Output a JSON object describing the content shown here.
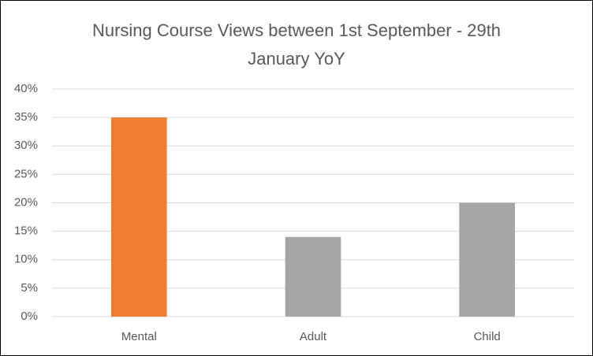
{
  "chart_data": {
    "type": "bar",
    "title": "Nursing Course Views between 1st September - 29th January YoY",
    "categories": [
      "Mental",
      "Adult",
      "Child"
    ],
    "values": [
      35,
      14,
      20
    ],
    "colors": [
      "#ed7d31",
      "#a5a5a5",
      "#a5a5a5"
    ],
    "ylim": [
      0,
      40
    ],
    "yticks": [
      {
        "value": 0,
        "label": "0%"
      },
      {
        "value": 5,
        "label": "5%"
      },
      {
        "value": 10,
        "label": "10%"
      },
      {
        "value": 15,
        "label": "15%"
      },
      {
        "value": 20,
        "label": "20%"
      },
      {
        "value": 25,
        "label": "25%"
      },
      {
        "value": 30,
        "label": "30%"
      },
      {
        "value": 35,
        "label": "35%"
      },
      {
        "value": 40,
        "label": "40%"
      }
    ],
    "grid": true
  }
}
